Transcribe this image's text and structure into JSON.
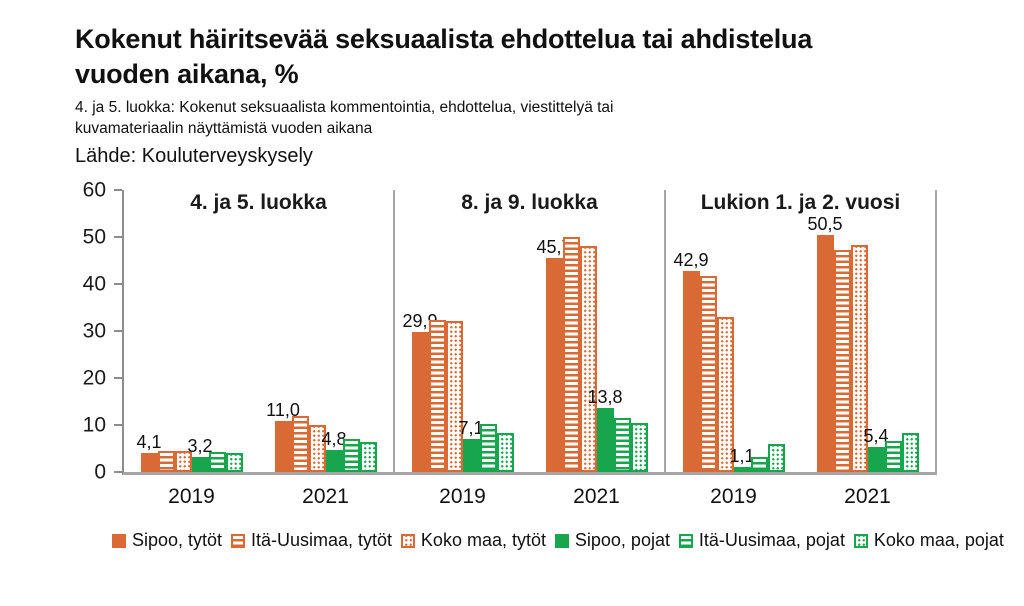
{
  "colors": {
    "orange": "#D96A35",
    "green": "#17A54E",
    "axis_gray": "#8c8c8c",
    "grid_gray": "#a6a6a6",
    "text": "#111111"
  },
  "chart_data": {
    "type": "bar",
    "title": "Kokenut häiritsevää seksuaalista ehdottelua tai ahdistelua\nvuoden aikana, %",
    "subtitle": "4. ja 5. luokka: Kokenut seksuaalista kommentointia, ehdottelua, viestittelyä tai\nkuvamateriaalin näyttämistä vuoden aikana",
    "source": "Lähde: Kouluterveyskysely",
    "ylim": [
      0,
      60
    ],
    "yticks": [
      0,
      10,
      20,
      30,
      40,
      50,
      60
    ],
    "grid": false,
    "legend_position": "bottom",
    "series": [
      {
        "name": "Sipoo, tytöt",
        "color": "#D96A35",
        "pattern": "solid"
      },
      {
        "name": "Itä-Uusimaa, tytöt",
        "color": "#D96A35",
        "pattern": "hstripes"
      },
      {
        "name": "Koko maa, tytöt",
        "color": "#D96A35",
        "pattern": "dots"
      },
      {
        "name": "Sipoo, pojat",
        "color": "#17A54E",
        "pattern": "solid"
      },
      {
        "name": "Itä-Uusimaa, pojat",
        "color": "#17A54E",
        "pattern": "hstripes"
      },
      {
        "name": "Koko maa, pojat",
        "color": "#17A54E",
        "pattern": "dots"
      }
    ],
    "panels": [
      {
        "title": "4. ja 5. luokka",
        "groups": [
          {
            "x": "2019",
            "values": [
              4.1,
              4.6,
              4.6,
              3.2,
              4.3,
              4.2
            ],
            "labels": [
              "4,1",
              null,
              null,
              "3,2",
              null,
              null
            ]
          },
          {
            "x": "2021",
            "values": [
              11.0,
              12.0,
              10.1,
              4.8,
              7.2,
              6.4
            ],
            "labels": [
              "11,0",
              null,
              null,
              "4,8",
              null,
              null
            ]
          }
        ]
      },
      {
        "title": "8. ja 9. luokka",
        "groups": [
          {
            "x": "2019",
            "values": [
              29.9,
              32.4,
              32.2,
              7.1,
              10.3,
              8.3
            ],
            "labels": [
              "29,9",
              null,
              null,
              "7,1",
              null,
              null
            ]
          },
          {
            "x": "2021",
            "values": [
              45.7,
              50.0,
              48.2,
              13.8,
              11.6,
              10.5
            ],
            "labels": [
              "45,7",
              null,
              null,
              "13,8",
              null,
              null
            ]
          }
        ]
      },
      {
        "title": "Lukion 1. ja 2. vuosi",
        "groups": [
          {
            "x": "2019",
            "values": [
              42.9,
              41.9,
              33.0,
              1.1,
              3.3,
              6.0
            ],
            "labels": [
              "42,9",
              null,
              null,
              "1,1",
              null,
              null
            ]
          },
          {
            "x": "2021",
            "values": [
              50.5,
              47.3,
              48.3,
              5.4,
              6.7,
              8.3
            ],
            "labels": [
              "50,5",
              null,
              null,
              "5,4",
              null,
              null
            ]
          }
        ]
      }
    ]
  }
}
